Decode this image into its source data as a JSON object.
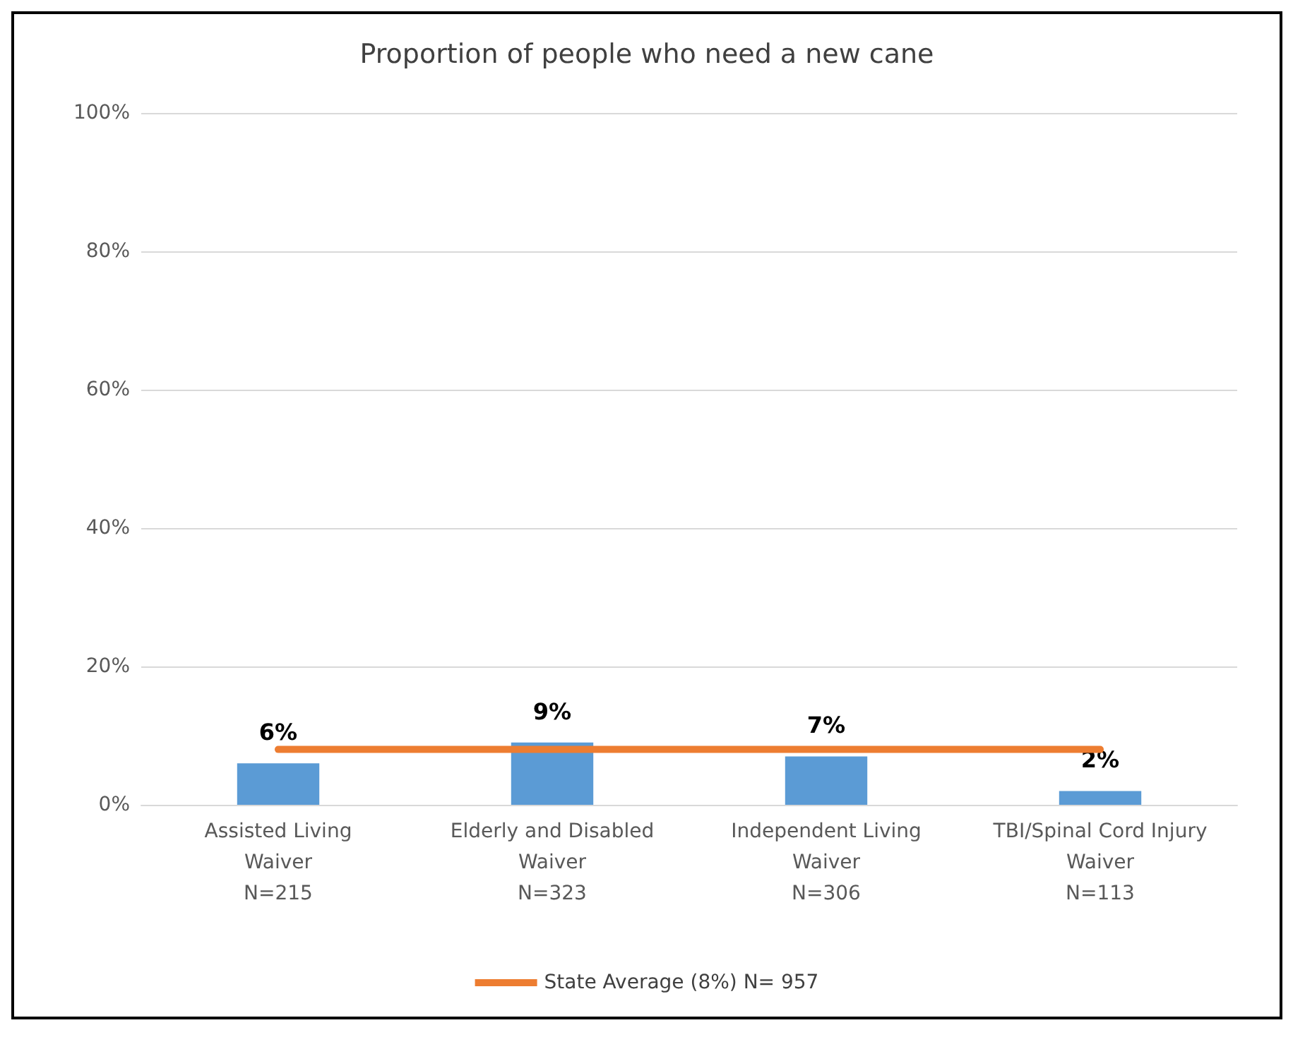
{
  "chart_data": {
    "type": "bar",
    "title": "Proportion of people who need a new cane",
    "categories": [
      "Assisted Living\nWaiver\nN=215",
      "Elderly and Disabled\nWaiver\nN=323",
      "Independent Living\nWaiver\nN=306",
      "TBI/Spinal Cord Injury\nWaiver\nN=113"
    ],
    "series": [
      {
        "color": "#5b9bd5",
        "values": [
          6,
          9,
          7,
          2
        ],
        "value_labels": [
          "6%",
          "9%",
          "7%",
          "2%"
        ]
      },
      {
        "type": "line",
        "name": "State Average (8%) N= 957",
        "color": "#ed7d31",
        "values": [
          8,
          8,
          8,
          8
        ]
      }
    ],
    "ylim": [
      0,
      100
    ],
    "yticks": [
      {
        "value": 0,
        "label": "0%"
      },
      {
        "value": 20,
        "label": "20%"
      },
      {
        "value": 40,
        "label": "40%"
      },
      {
        "value": 60,
        "label": "60%"
      },
      {
        "value": 80,
        "label": "80%"
      },
      {
        "value": 100,
        "label": "100%"
      }
    ],
    "grid": "y",
    "legend": "bottom",
    "marker": "none"
  }
}
